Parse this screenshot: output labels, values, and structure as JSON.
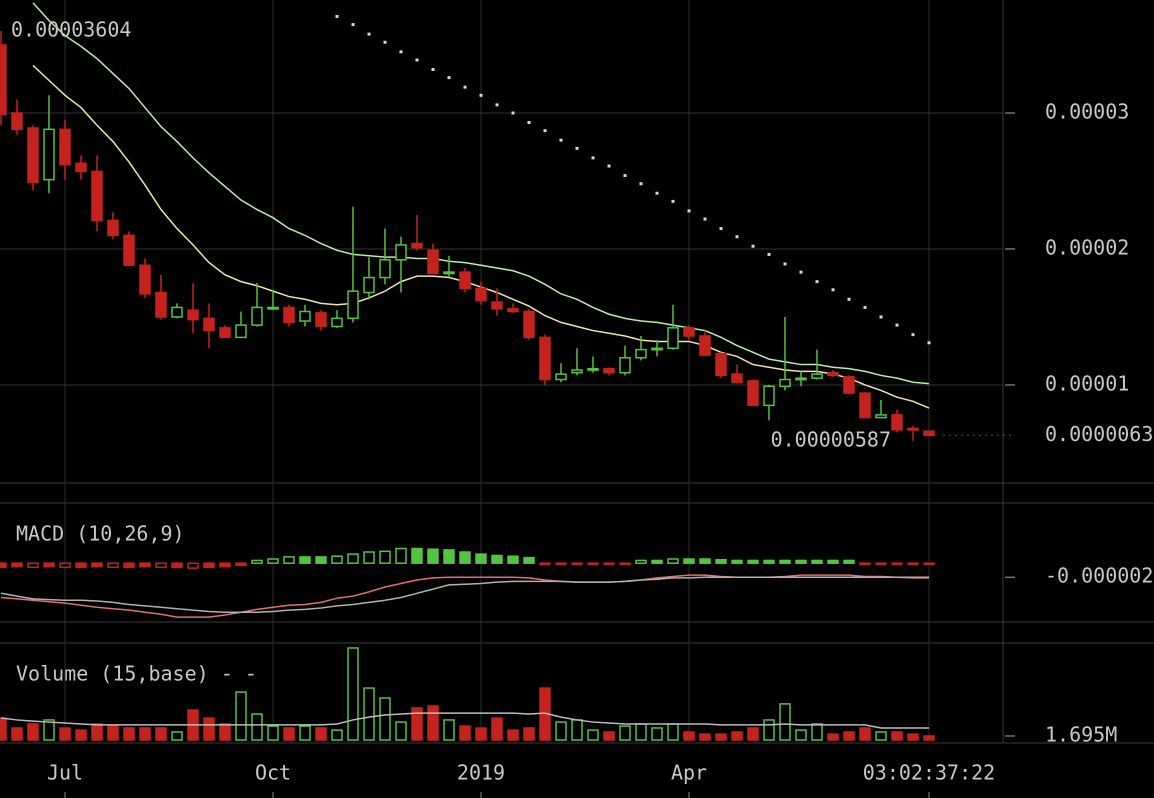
{
  "chart_data": [
    {
      "type": "candlestick",
      "categories": [
        null,
        null,
        null,
        null,
        "Jul",
        null,
        null,
        null,
        null,
        null,
        null,
        null,
        null,
        null,
        null,
        null,
        null,
        "Oct",
        null,
        null,
        null,
        null,
        null,
        null,
        null,
        null,
        null,
        null,
        null,
        null,
        "2019",
        null,
        null,
        null,
        null,
        null,
        null,
        null,
        null,
        null,
        null,
        null,
        null,
        "Apr",
        null,
        null,
        null,
        null,
        null,
        null,
        null,
        null,
        null,
        null,
        null,
        null,
        null,
        null,
        "03:02:37:22"
      ],
      "open": [
        3.5e-05,
        3e-05,
        2.89e-05,
        2.51e-05,
        2.88e-05,
        2.63e-05,
        2.57e-05,
        2.21e-05,
        2.1e-05,
        1.88e-05,
        1.68e-05,
        1.5e-05,
        1.55e-05,
        1.49e-05,
        1.42e-05,
        1.35e-05,
        1.44e-05,
        1.57e-05,
        1.57e-05,
        1.47e-05,
        1.53e-05,
        1.43e-05,
        1.49e-05,
        1.68e-05,
        1.79e-05,
        1.92e-05,
        2.04e-05,
        1.99e-05,
        1.82e-05,
        1.83e-05,
        1.71e-05,
        1.61e-05,
        1.56e-05,
        1.54e-05,
        1.35e-05,
        1.04e-05,
        1.09e-05,
        1.11e-05,
        1.12e-05,
        1.09e-05,
        1.2e-05,
        1.26e-05,
        1.27e-05,
        1.42e-05,
        1.36e-05,
        1.23e-05,
        1.08e-05,
        1.03e-05,
        8.5e-06,
        9.9e-06,
        1.04e-05,
        1.05e-05,
        1.09e-05,
        1.06e-05,
        9.4e-06,
        7.6e-06,
        7.8e-06,
        6.8e-06,
        6.6e-06
      ],
      "high": [
        3.604e-05,
        3.1e-05,
        2.91e-05,
        3.13e-05,
        2.95e-05,
        2.69e-05,
        2.69e-05,
        2.27e-05,
        2.13e-05,
        1.93e-05,
        1.81e-05,
        1.6e-05,
        1.75e-05,
        1.6e-05,
        1.44e-05,
        1.54e-05,
        1.75e-05,
        1.7e-05,
        1.59e-05,
        1.59e-05,
        1.55e-05,
        1.55e-05,
        2.31e-05,
        1.94e-05,
        2.15e-05,
        2.09e-05,
        2.25e-05,
        2.04e-05,
        1.95e-05,
        1.86e-05,
        1.76e-05,
        1.71e-05,
        1.6e-05,
        1.56e-05,
        1.37e-05,
        1.16e-05,
        1.27e-05,
        1.21e-05,
        1.13e-05,
        1.29e-05,
        1.36e-05,
        1.33e-05,
        1.59e-05,
        1.44e-05,
        1.4e-05,
        1.24e-05,
        1.15e-05,
        1.04e-05,
        1e-05,
        1.5e-05,
        1.1e-05,
        1.26e-05,
        1.11e-05,
        1.07e-05,
        9.5e-06,
        8.9e-06,
        8.2e-06,
        7e-06,
        6.6e-06
      ],
      "low": [
        2.91e-05,
        2.84e-05,
        2.43e-05,
        2.41e-05,
        2.51e-05,
        2.51e-05,
        2.13e-05,
        2.07e-05,
        1.88e-05,
        1.64e-05,
        1.48e-05,
        1.49e-05,
        1.38e-05,
        1.27e-05,
        1.35e-05,
        1.35e-05,
        1.43e-05,
        1.55e-05,
        1.43e-05,
        1.43e-05,
        1.4e-05,
        1.42e-05,
        1.46e-05,
        1.63e-05,
        1.74e-05,
        1.68e-05,
        1.99e-05,
        1.82e-05,
        1.79e-05,
        1.68e-05,
        1.59e-05,
        1.51e-05,
        1.53e-05,
        1.33e-05,
        1e-05,
        1.02e-05,
        1.07e-05,
        1.09e-05,
        1.07e-05,
        1.07e-05,
        1.18e-05,
        1.21e-05,
        1.26e-05,
        1.33e-05,
        1.21e-05,
        1.05e-05,
        1.01e-05,
        8.5e-06,
        7.4e-06,
        9.6e-06,
        9.9e-06,
        1.04e-05,
        1.06e-05,
        9.3e-06,
        7.6e-06,
        7.6e-06,
        6.5e-06,
        5.87e-06,
        6.3e-06
      ],
      "close": [
        2.99e-05,
        2.88e-05,
        2.49e-05,
        2.88e-05,
        2.62e-05,
        2.57e-05,
        2.21e-05,
        2.1e-05,
        1.88e-05,
        1.67e-05,
        1.5e-05,
        1.57e-05,
        1.48e-05,
        1.4e-05,
        1.35e-05,
        1.44e-05,
        1.57e-05,
        1.57e-05,
        1.46e-05,
        1.54e-05,
        1.43e-05,
        1.49e-05,
        1.69e-05,
        1.79e-05,
        1.92e-05,
        2.03e-05,
        2.01e-05,
        1.82e-05,
        1.83e-05,
        1.71e-05,
        1.62e-05,
        1.56e-05,
        1.54e-05,
        1.35e-05,
        1.04e-05,
        1.08e-05,
        1.11e-05,
        1.12e-05,
        1.09e-05,
        1.2e-05,
        1.26e-05,
        1.27e-05,
        1.42e-05,
        1.36e-05,
        1.22e-05,
        1.07e-05,
        1.02e-05,
        8.5e-06,
        9.9e-06,
        1.04e-05,
        1.05e-05,
        1.08e-05,
        1.07e-05,
        9.4e-06,
        7.6e-06,
        7.8e-06,
        6.7e-06,
        6.7e-06,
        6.3e-06
      ],
      "up_color": "#52c43f",
      "down_color": "#c4221d",
      "lines": [
        {
          "color": "#b4f0a8",
          "values": [
            null,
            null,
            3.81e-05,
            3.68e-05,
            3.57e-05,
            3.49e-05,
            3.4e-05,
            3.29e-05,
            3.18e-05,
            3.04e-05,
            2.9e-05,
            2.79e-05,
            2.67e-05,
            2.56e-05,
            2.46e-05,
            2.36e-05,
            2.29e-05,
            2.23e-05,
            2.15e-05,
            2.1e-05,
            2.04e-05,
            1.99e-05,
            1.96e-05,
            1.95e-05,
            1.94e-05,
            1.94e-05,
            1.93e-05,
            1.93e-05,
            1.91e-05,
            1.9e-05,
            1.88e-05,
            1.86e-05,
            1.84e-05,
            1.8e-05,
            1.74e-05,
            1.67e-05,
            1.63e-05,
            1.57e-05,
            1.52e-05,
            1.49e-05,
            1.47e-05,
            1.46e-05,
            1.44e-05,
            1.42e-05,
            1.4e-05,
            1.35e-05,
            1.29e-05,
            1.24e-05,
            1.19e-05,
            1.17e-05,
            1.15e-05,
            1.15e-05,
            1.13e-05,
            1.12e-05,
            1.1e-05,
            1.07e-05,
            1.05e-05,
            1.02e-05,
            1.01e-05
          ]
        },
        {
          "color": "#ece6a6",
          "values": [
            null,
            null,
            3.35e-05,
            3.24e-05,
            3.13e-05,
            3.04e-05,
            2.91e-05,
            2.79e-05,
            2.64e-05,
            2.47e-05,
            2.29e-05,
            2.15e-05,
            2.03e-05,
            1.9e-05,
            1.81e-05,
            1.76e-05,
            1.73e-05,
            1.69e-05,
            1.65e-05,
            1.63e-05,
            1.6e-05,
            1.59e-05,
            1.6e-05,
            1.64e-05,
            1.69e-05,
            1.76e-05,
            1.8e-05,
            1.8e-05,
            1.79e-05,
            1.76e-05,
            1.72e-05,
            1.68e-05,
            1.63e-05,
            1.58e-05,
            1.51e-05,
            1.46e-05,
            1.43e-05,
            1.4e-05,
            1.38e-05,
            1.36e-05,
            1.33e-05,
            1.32e-05,
            1.32e-05,
            1.32e-05,
            1.29e-05,
            1.24e-05,
            1.21e-05,
            1.15e-05,
            1.13e-05,
            1.11e-05,
            1.1e-05,
            1.1e-05,
            1.08e-05,
            1.05e-05,
            1e-05,
            9.6e-06,
            9.1e-06,
            8.8e-06,
            8.3e-06
          ]
        }
      ],
      "sar": {
        "color": "#d8d8d8",
        "values": [
          null,
          null,
          null,
          null,
          null,
          null,
          null,
          null,
          null,
          null,
          null,
          null,
          null,
          null,
          null,
          null,
          null,
          null,
          null,
          null,
          null,
          3.71e-05,
          3.65e-05,
          3.58e-05,
          3.52e-05,
          3.45e-05,
          3.39e-05,
          3.32e-05,
          3.26e-05,
          3.19e-05,
          3.13e-05,
          3.06e-05,
          3e-05,
          2.93e-05,
          2.87e-05,
          2.8e-05,
          2.74e-05,
          2.67e-05,
          2.61e-05,
          2.54e-05,
          2.48e-05,
          2.41e-05,
          2.35e-05,
          2.28e-05,
          2.22e-05,
          2.15e-05,
          2.09e-05,
          2.02e-05,
          1.96e-05,
          1.89e-05,
          1.83e-05,
          1.76e-05,
          1.7e-05,
          1.63e-05,
          1.57e-05,
          1.5e-05,
          1.44e-05,
          1.37e-05,
          1.31e-05
        ]
      },
      "max_label": {
        "value": 3.604e-05,
        "label": "0.00003604"
      },
      "min_label": {
        "value": 5.87e-06,
        "label": "0.00000587"
      },
      "last_price": {
        "value": 6.3e-06,
        "label": "0.0000063"
      },
      "ylim": [
        2.79e-06,
        3.831e-05
      ],
      "yticks": [
        1e-05,
        2e-05,
        3e-05
      ],
      "grid": true
    },
    {
      "type": "macd",
      "title": "MACD (10,26,9)",
      "histogram": [
        -6e-07,
        -5e-07,
        -6e-07,
        -5e-07,
        -6e-07,
        -6e-07,
        -5e-07,
        -6e-07,
        -6e-07,
        -5e-07,
        -6e-07,
        -6e-07,
        -7e-07,
        -6e-07,
        -5e-07,
        -3e-07,
        4e-07,
        6e-07,
        9e-07,
        9e-07,
        9e-07,
        1e-06,
        1.3e-06,
        1.6e-06,
        1.7e-06,
        2.1e-06,
        2.1e-06,
        2e-06,
        1.9e-06,
        1.6e-06,
        1.3e-06,
        1.1e-06,
        1e-06,
        8e-07,
        -1e-07,
        -1e-07,
        -1e-07,
        -1e-07,
        -1e-07,
        -1e-07,
        4e-07,
        4e-07,
        6e-07,
        6e-07,
        6e-07,
        5e-07,
        4e-07,
        4e-07,
        4e-07,
        4e-07,
        4e-07,
        4e-07,
        4e-07,
        4e-07,
        -1e-07,
        -1e-07,
        -1e-07,
        -1e-07,
        -1e-07
      ],
      "up_color": "#52c43f",
      "down_color": "#c4221d",
      "series": [
        {
          "color": "#e0706a",
          "values": [
            -4.9e-06,
            -5.1e-06,
            -5.3e-06,
            -5.5e-06,
            -5.7e-06,
            -6e-06,
            -6.3e-06,
            -6.5e-06,
            -6.7e-06,
            -7e-06,
            -7.3e-06,
            -7.7e-06,
            -7.7e-06,
            -7.7e-06,
            -7.4e-06,
            -7e-06,
            -6.6e-06,
            -6.3e-06,
            -6e-06,
            -5.9e-06,
            -5.6e-06,
            -5e-06,
            -4.7e-06,
            -4.1e-06,
            -3.4e-06,
            -2.9e-06,
            -2.4e-06,
            -2.1e-06,
            -2e-06,
            -2e-06,
            -2e-06,
            -2e-06,
            -2e-06,
            -2.1e-06,
            -2.4e-06,
            -2.6e-06,
            -2.7e-06,
            -2.7e-06,
            -2.7e-06,
            -2.6e-06,
            -2.4e-06,
            -2.1e-06,
            -1.9e-06,
            -1.7e-06,
            -1.7e-06,
            -1.9e-06,
            -2e-06,
            -2e-06,
            -2e-06,
            -1.9e-06,
            -1.7e-06,
            -1.7e-06,
            -1.7e-06,
            -1.7e-06,
            -1.9e-06,
            -1.9e-06,
            -2e-06,
            -2.1e-06,
            -2.1e-06
          ]
        },
        {
          "color": "#b0b0b0",
          "values": [
            -4.3e-06,
            -4.7e-06,
            -5.1e-06,
            -5.2e-06,
            -5.3e-06,
            -5.3e-06,
            -5.4e-06,
            -5.6e-06,
            -5.9e-06,
            -6.1e-06,
            -6.3e-06,
            -6.5e-06,
            -6.7e-06,
            -6.9e-06,
            -7e-06,
            -7e-06,
            -7e-06,
            -6.9e-06,
            -6.7e-06,
            -6.6e-06,
            -6.4e-06,
            -6.1e-06,
            -5.9e-06,
            -5.6e-06,
            -5.3e-06,
            -4.9e-06,
            -4.3e-06,
            -3.7e-06,
            -3.1e-06,
            -3e-06,
            -2.9e-06,
            -2.7e-06,
            -2.6e-06,
            -2.6e-06,
            -2.6e-06,
            -2.6e-06,
            -2.7e-06,
            -2.7e-06,
            -2.7e-06,
            -2.6e-06,
            -2.4e-06,
            -2.3e-06,
            -2.1e-06,
            -2.1e-06,
            -2e-06,
            -2e-06,
            -2e-06,
            -2e-06,
            -2e-06,
            -2e-06,
            -2e-06,
            -2e-06,
            -2e-06,
            -2e-06,
            -2e-06,
            -2e-06,
            -2e-06,
            -2e-06,
            -2e-06
          ]
        }
      ],
      "ylim": [
        -8.4e-06,
        8.6e-06
      ],
      "yticks": [
        {
          "value": -2e-06,
          "label": "-0.000002"
        }
      ]
    },
    {
      "type": "volume",
      "title": "Volume (15,base) - -",
      "values": [
        9300000.0,
        5100000.0,
        6800000.0,
        8500000.0,
        5100000.0,
        4200000.0,
        6800000.0,
        5900000.0,
        5100000.0,
        5100000.0,
        5100000.0,
        3400000.0,
        12700000.0,
        9300000.0,
        6800000.0,
        20300000.0,
        11000000.0,
        5900000.0,
        5100000.0,
        5900000.0,
        5100000.0,
        4200000.0,
        39000000.0,
        22000000.0,
        17800000.0,
        7600000.0,
        13600000.0,
        14400000.0,
        8500000.0,
        5900000.0,
        5100000.0,
        9300000.0,
        4200000.0,
        5100000.0,
        22000000.0,
        7600000.0,
        8500000.0,
        4200000.0,
        3400000.0,
        5900000.0,
        6800000.0,
        5100000.0,
        6800000.0,
        3400000.0,
        2500000.0,
        2500000.0,
        3400000.0,
        5100000.0,
        8500000.0,
        15300000.0,
        4200000.0,
        6800000.0,
        2500000.0,
        3400000.0,
        5100000.0,
        3400000.0,
        3400000.0,
        2500000.0,
        1695000.0
      ],
      "ma": {
        "color": "#bdbdbd",
        "values": [
          9300000.0,
          8500000.0,
          8000000.0,
          7600000.0,
          7200000.0,
          6800000.0,
          6400000.0,
          6400000.0,
          6400000.0,
          6400000.0,
          6400000.0,
          6400000.0,
          6400000.0,
          6400000.0,
          6400000.0,
          6400000.0,
          6400000.0,
          6400000.0,
          6400000.0,
          6400000.0,
          6400000.0,
          6800000.0,
          8500000.0,
          9700000.0,
          10600000.0,
          11000000.0,
          11400000.0,
          11400000.0,
          11400000.0,
          11400000.0,
          11400000.0,
          11400000.0,
          11400000.0,
          11000000.0,
          11400000.0,
          9700000.0,
          8500000.0,
          7600000.0,
          7200000.0,
          6800000.0,
          6800000.0,
          6800000.0,
          6800000.0,
          6800000.0,
          6800000.0,
          6400000.0,
          6400000.0,
          6400000.0,
          6400000.0,
          6800000.0,
          6400000.0,
          6400000.0,
          6400000.0,
          6400000.0,
          6400000.0,
          5100000.0,
          5100000.0,
          5100000.0,
          5100000.0
        ]
      },
      "ylim": [
        0,
        41100000
      ],
      "yticks": [
        {
          "value": 1695000,
          "label": "1.695M"
        }
      ]
    }
  ]
}
